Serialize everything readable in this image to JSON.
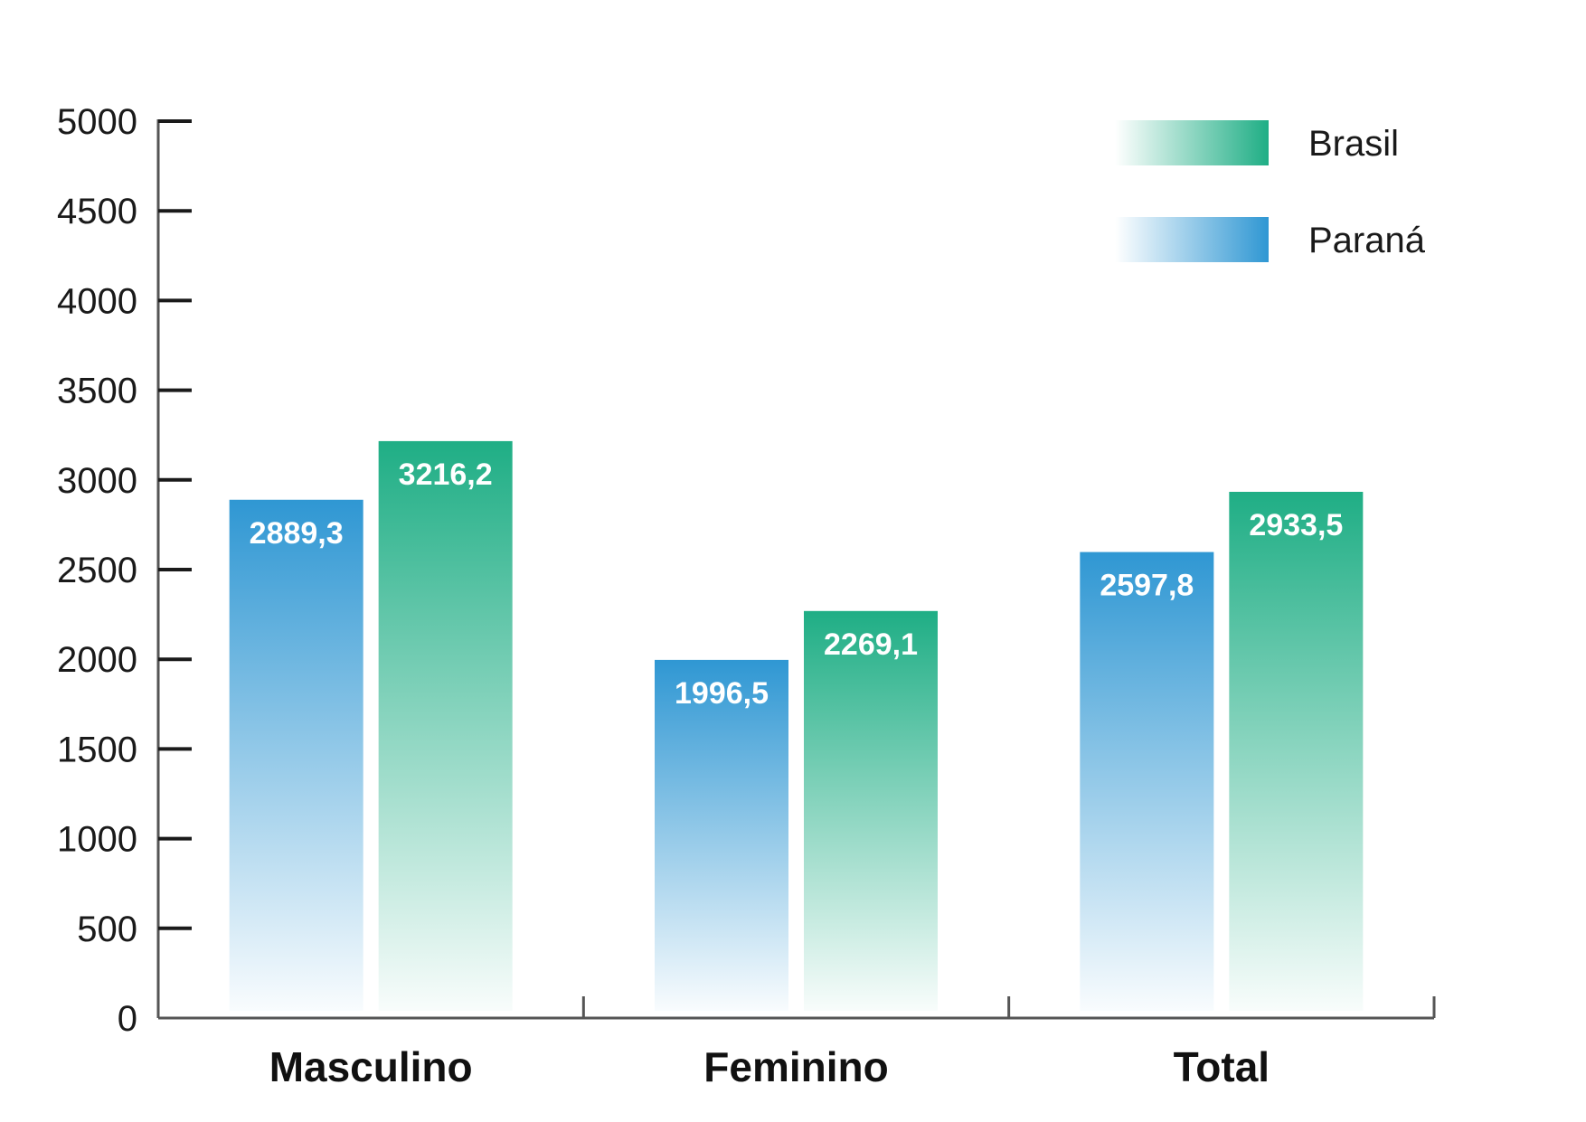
{
  "chart_data": {
    "type": "bar",
    "categories": [
      "Masculino",
      "Feminino",
      "Total"
    ],
    "series": [
      {
        "name": "Paraná",
        "values": [
          2889.3,
          1996.5,
          2597.8
        ],
        "labels": [
          "2889,3",
          "1996,5",
          "2597,8"
        ],
        "color": "#2f97d3"
      },
      {
        "name": "Brasil",
        "values": [
          3216.2,
          2269.1,
          2933.5
        ],
        "labels": [
          "3216,2",
          "2269,1",
          "2933,5"
        ],
        "color": "#1fae85"
      }
    ],
    "ylim": [
      0,
      5000
    ],
    "yticks": [
      0,
      500,
      1000,
      1500,
      2000,
      2500,
      3000,
      3500,
      4000,
      4500,
      5000
    ],
    "legend_order": [
      "Brasil",
      "Paraná"
    ],
    "legend_position": "top-right",
    "grid": false
  }
}
